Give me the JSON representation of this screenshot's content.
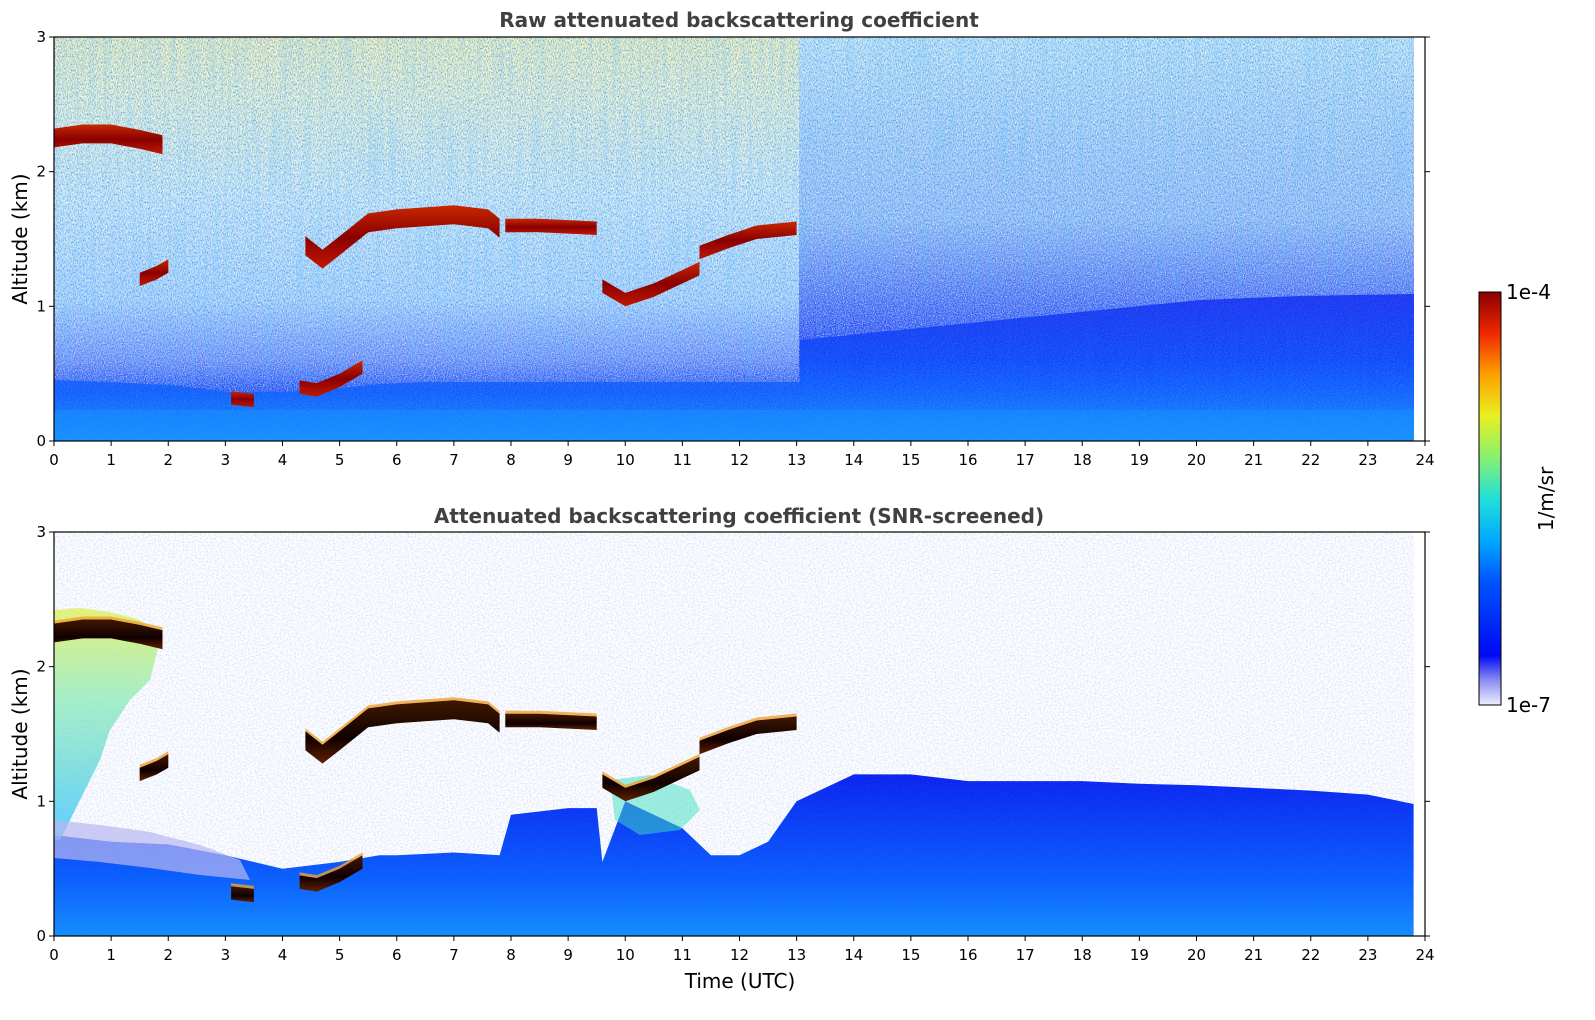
{
  "chart_data": [
    {
      "type": "heatmap",
      "title": "Raw attenuated backscattering coefficient",
      "xlabel": "",
      "ylabel": "Altitude (km)",
      "xlim": [
        0,
        24
      ],
      "ylim": [
        0,
        3
      ],
      "xticks": [
        0,
        1,
        2,
        3,
        4,
        5,
        6,
        7,
        8,
        9,
        10,
        11,
        12,
        13,
        14,
        15,
        16,
        17,
        18,
        19,
        20,
        21,
        22,
        23,
        24
      ],
      "yticks": [
        0,
        1,
        2,
        3
      ],
      "data_end_time": 23.8,
      "colorscale": "jet",
      "value_range": [
        "1e-7",
        "1e-4"
      ],
      "cloud_layers": [
        {
          "t": [
            0.0,
            0.5,
            1.0,
            1.5,
            1.9
          ],
          "alt": [
            2.25,
            2.28,
            2.28,
            2.24,
            2.2
          ]
        },
        {
          "t": [
            1.5,
            1.8,
            2.0
          ],
          "alt": [
            1.2,
            1.25,
            1.3
          ]
        },
        {
          "t": [
            4.4,
            4.7,
            5.0,
            5.5,
            6.0,
            7.0,
            7.6,
            7.8
          ],
          "alt": [
            1.45,
            1.35,
            1.45,
            1.62,
            1.65,
            1.68,
            1.65,
            1.58
          ]
        },
        {
          "t": [
            7.9,
            8.5,
            9.5
          ],
          "alt": [
            1.6,
            1.6,
            1.58
          ]
        },
        {
          "t": [
            9.6,
            10.0,
            10.5,
            11.0,
            11.3
          ],
          "alt": [
            1.15,
            1.05,
            1.12,
            1.22,
            1.28
          ]
        },
        {
          "t": [
            11.3,
            11.8,
            12.3,
            13.0
          ],
          "alt": [
            1.4,
            1.48,
            1.55,
            1.58
          ]
        },
        {
          "t": [
            3.1,
            3.5
          ],
          "alt": [
            0.32,
            0.3
          ]
        },
        {
          "t": [
            4.3,
            4.6,
            5.0,
            5.4
          ],
          "alt": [
            0.4,
            0.38,
            0.45,
            0.55
          ]
        }
      ]
    },
    {
      "type": "heatmap",
      "title": "Attenuated backscattering coefficient (SNR-screened)",
      "xlabel": "Time (UTC)",
      "ylabel": "Altitude (km)",
      "xlim": [
        0,
        24
      ],
      "ylim": [
        0,
        3
      ],
      "xticks": [
        0,
        1,
        2,
        3,
        4,
        5,
        6,
        7,
        8,
        9,
        10,
        11,
        12,
        13,
        14,
        15,
        16,
        17,
        18,
        19,
        20,
        21,
        22,
        23,
        24
      ],
      "yticks": [
        0,
        1,
        2,
        3
      ],
      "data_end_time": 23.8,
      "colorscale": "jet",
      "value_range": [
        "1e-7",
        "1e-4"
      ],
      "boundary_layer_top": {
        "t": [
          0,
          1,
          2,
          3,
          4,
          5,
          5.7,
          6,
          7,
          7.8,
          8,
          9,
          9.5,
          9.6,
          10,
          11,
          11.5,
          12,
          12.5,
          13,
          14,
          15,
          16,
          17,
          18,
          19,
          20,
          21,
          22,
          23,
          23.8
        ],
        "alt": [
          0.75,
          0.7,
          0.68,
          0.6,
          0.5,
          0.55,
          0.6,
          0.6,
          0.62,
          0.6,
          0.9,
          0.95,
          0.95,
          0.55,
          1.0,
          0.8,
          0.6,
          0.6,
          0.7,
          1.0,
          1.2,
          1.2,
          1.15,
          1.15,
          1.15,
          1.13,
          1.12,
          1.1,
          1.08,
          1.05,
          0.98
        ]
      }
    }
  ],
  "colorbar": {
    "label": "1/m/sr",
    "max_label": "1e-4",
    "min_label": "1e-7"
  }
}
